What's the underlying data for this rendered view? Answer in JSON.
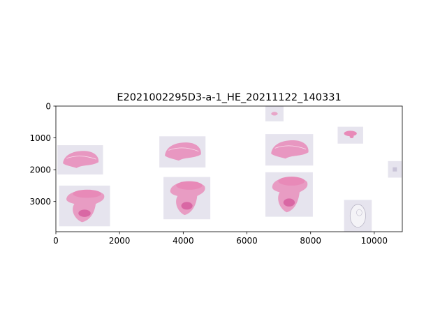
{
  "chart_data": {
    "type": "image",
    "title": "E2021002295D3-a-1_HE_20211122_140331",
    "xlabel": "",
    "ylabel": "",
    "xlim": [
      0,
      10880
    ],
    "ylim": [
      3950,
      0
    ],
    "xticks": [
      0,
      2000,
      4000,
      6000,
      8000,
      10000
    ],
    "yticks": [
      0,
      1000,
      2000,
      3000
    ],
    "grid": false,
    "background": "#ffffff",
    "tile_color": "#e6e4ee",
    "tissue_color": "#e88ab8",
    "tissue_dark_color": "#d4569a",
    "tiles": [
      {
        "x0": 6580,
        "x1": 7150,
        "y0": 0,
        "y1": 480,
        "tissue": "speck"
      },
      {
        "x0": 8850,
        "x1": 9650,
        "y0": 650,
        "y1": 1180,
        "tissue": "small"
      },
      {
        "x0": 50,
        "x1": 1480,
        "y0": 1230,
        "y1": 2150,
        "tissue": "section"
      },
      {
        "x0": 3250,
        "x1": 4700,
        "y0": 950,
        "y1": 1930,
        "tissue": "section"
      },
      {
        "x0": 6580,
        "x1": 8080,
        "y0": 880,
        "y1": 1870,
        "tissue": "section"
      },
      {
        "x0": 10430,
        "x1": 10860,
        "y0": 1730,
        "y1": 2250,
        "tissue": "faint"
      },
      {
        "x0": 100,
        "x1": 1700,
        "y0": 2500,
        "y1": 3780,
        "tissue": "section_large"
      },
      {
        "x0": 3380,
        "x1": 4850,
        "y0": 2230,
        "y1": 3560,
        "tissue": "section_large"
      },
      {
        "x0": 6580,
        "x1": 8070,
        "y0": 2080,
        "y1": 3480,
        "tissue": "section_large"
      },
      {
        "x0": 9050,
        "x1": 9920,
        "y0": 2950,
        "y1": 3950,
        "tissue": "outline"
      }
    ]
  }
}
